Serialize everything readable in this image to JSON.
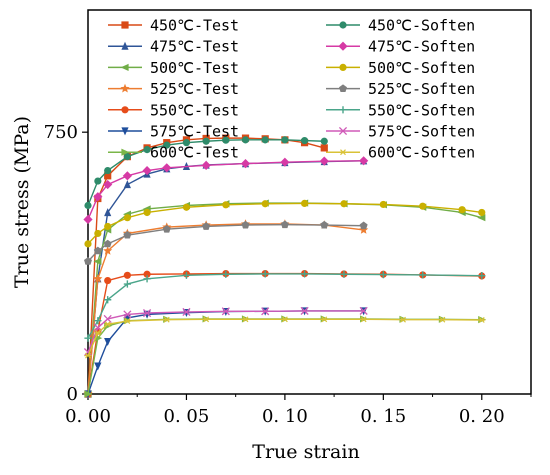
{
  "chart_data": {
    "type": "line",
    "xlabel": "True strain",
    "ylabel": "True stress (MPa)",
    "xlim": [
      0,
      0.225
    ],
    "ylim": [
      0,
      1100
    ],
    "x_ticks": [
      {
        "value": 0.0,
        "label": "0. 00"
      },
      {
        "value": 0.05,
        "label": "0. 05"
      },
      {
        "value": 0.1,
        "label": "0. 10"
      },
      {
        "value": 0.15,
        "label": "0. 15"
      },
      {
        "value": 0.2,
        "label": "0. 20"
      }
    ],
    "y_ticks": [
      {
        "value": 0,
        "label": "0"
      },
      {
        "value": 750,
        "label": "750"
      }
    ],
    "y_minor_ticks": [
      375,
      1125
    ],
    "legend_position": "top",
    "series": [
      {
        "name": "450℃-Test",
        "color": "#d94a16",
        "marker": "square",
        "x": [
          0,
          0.005,
          0.01,
          0.02,
          0.03,
          0.04,
          0.05,
          0.06,
          0.07,
          0.08,
          0.09,
          0.1,
          0.11,
          0.12
        ],
        "y": [
          0,
          560,
          625,
          680,
          705,
          720,
          728,
          732,
          733,
          733,
          731,
          728,
          720,
          705
        ]
      },
      {
        "name": "475℃-Test",
        "color": "#2f5597",
        "marker": "triangle-up",
        "x": [
          0,
          0.005,
          0.01,
          0.02,
          0.03,
          0.04,
          0.05,
          0.06,
          0.08,
          0.1,
          0.12,
          0.14
        ],
        "y": [
          0,
          330,
          520,
          600,
          630,
          645,
          652,
          656,
          660,
          663,
          666,
          668
        ]
      },
      {
        "name": "500℃-Test",
        "color": "#70ad47",
        "marker": "triangle-left",
        "x": [
          0,
          0.005,
          0.01,
          0.02,
          0.03,
          0.05,
          0.07,
          0.09,
          0.11,
          0.13,
          0.15,
          0.17,
          0.19,
          0.2
        ],
        "y": [
          0,
          380,
          470,
          515,
          530,
          540,
          545,
          547,
          547,
          545,
          542,
          535,
          520,
          505
        ]
      },
      {
        "name": "525℃-Test",
        "color": "#ed7d31",
        "marker": "star",
        "x": [
          0,
          0.005,
          0.01,
          0.02,
          0.04,
          0.06,
          0.08,
          0.1,
          0.12,
          0.14
        ],
        "y": [
          0,
          330,
          410,
          460,
          478,
          484,
          487,
          487,
          484,
          470
        ]
      },
      {
        "name": "550℃-Test",
        "color": "#e64c1a",
        "marker": "circle",
        "x": [
          0,
          0.005,
          0.01,
          0.02,
          0.03,
          0.05,
          0.07,
          0.09,
          0.11,
          0.13,
          0.15,
          0.17,
          0.2
        ],
        "y": [
          0,
          180,
          325,
          340,
          343,
          344,
          345,
          345,
          345,
          344,
          343,
          341,
          338
        ]
      },
      {
        "name": "575℃-Test",
        "color": "#1f4e9c",
        "marker": "triangle-down",
        "x": [
          0,
          0.005,
          0.01,
          0.02,
          0.03,
          0.05,
          0.07,
          0.09,
          0.11,
          0.14
        ],
        "y": [
          0,
          80,
          150,
          218,
          228,
          233,
          236,
          237,
          238,
          238
        ]
      },
      {
        "name": "600℃-Test",
        "color": "#7ab648",
        "marker": "triangle-right",
        "x": [
          0,
          0.005,
          0.01,
          0.02,
          0.04,
          0.06,
          0.08,
          0.1,
          0.12,
          0.14,
          0.16,
          0.18,
          0.2
        ],
        "y": [
          0,
          160,
          195,
          210,
          214,
          215,
          215,
          215,
          215,
          215,
          214,
          214,
          213
        ]
      },
      {
        "name": "450℃-Soften",
        "color": "#2e8b6a",
        "marker": "circle",
        "x": [
          0,
          0.005,
          0.01,
          0.02,
          0.03,
          0.04,
          0.05,
          0.06,
          0.07,
          0.08,
          0.09,
          0.1,
          0.11,
          0.12
        ],
        "y": [
          540,
          610,
          640,
          680,
          700,
          713,
          720,
          724,
          727,
          728,
          728,
          728,
          726,
          724
        ]
      },
      {
        "name": "475℃-Soften",
        "color": "#d63aa5",
        "marker": "diamond",
        "x": [
          0,
          0.005,
          0.01,
          0.02,
          0.03,
          0.04,
          0.06,
          0.08,
          0.1,
          0.12,
          0.14
        ],
        "y": [
          500,
          565,
          600,
          625,
          640,
          648,
          655,
          660,
          664,
          667,
          668
        ]
      },
      {
        "name": "500℃-Soften",
        "color": "#c9b000",
        "marker": "circle",
        "x": [
          0,
          0.005,
          0.01,
          0.02,
          0.03,
          0.05,
          0.07,
          0.09,
          0.11,
          0.13,
          0.15,
          0.17,
          0.19,
          0.2
        ],
        "y": [
          430,
          460,
          480,
          505,
          520,
          535,
          542,
          545,
          546,
          545,
          543,
          538,
          528,
          520
        ]
      },
      {
        "name": "525℃-Soften",
        "color": "#7f7f7f",
        "marker": "pentagon",
        "x": [
          0,
          0.005,
          0.01,
          0.02,
          0.04,
          0.06,
          0.08,
          0.1,
          0.12,
          0.14
        ],
        "y": [
          380,
          410,
          430,
          455,
          472,
          480,
          484,
          485,
          484,
          482
        ]
      },
      {
        "name": "550℃-Soften",
        "color": "#4aa58a",
        "marker": "plus",
        "x": [
          0,
          0.005,
          0.01,
          0.02,
          0.03,
          0.05,
          0.07,
          0.09,
          0.11,
          0.13,
          0.15,
          0.17,
          0.2
        ],
        "y": [
          160,
          210,
          270,
          315,
          330,
          340,
          343,
          344,
          344,
          343,
          342,
          341,
          339
        ]
      },
      {
        "name": "575℃-Soften",
        "color": "#d05ab8",
        "marker": "x",
        "x": [
          0,
          0.005,
          0.01,
          0.02,
          0.03,
          0.05,
          0.07,
          0.09,
          0.11,
          0.14
        ],
        "y": [
          120,
          190,
          215,
          228,
          232,
          235,
          237,
          237,
          238,
          238
        ]
      },
      {
        "name": "600℃-Soften",
        "color": "#d9c236",
        "marker": "asterisk",
        "x": [
          0,
          0.005,
          0.01,
          0.02,
          0.04,
          0.06,
          0.08,
          0.1,
          0.12,
          0.14,
          0.16,
          0.18,
          0.2
        ],
        "y": [
          110,
          175,
          200,
          209,
          213,
          214,
          214,
          214,
          214,
          214,
          213,
          213,
          212
        ]
      }
    ]
  }
}
